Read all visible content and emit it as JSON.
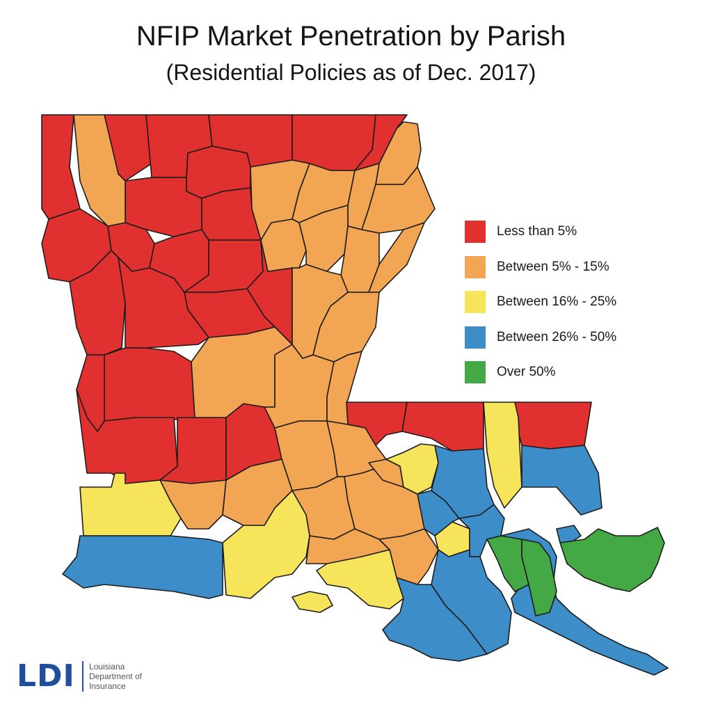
{
  "title": "NFIP Market Penetration by Parish",
  "subtitle": "(Residential Policies as of Dec. 2017)",
  "legend": [
    {
      "label": "Less than 5%",
      "color": "#e0302f"
    },
    {
      "label": "Between 5% - 15%",
      "color": "#f2a654"
    },
    {
      "label": "Between 16% - 25%",
      "color": "#f6e45a"
    },
    {
      "label": "Between 26% - 50%",
      "color": "#3d8dc8"
    },
    {
      "label": "Over 50%",
      "color": "#44a845"
    }
  ],
  "logo": {
    "mark": "LDI",
    "line1": "Louisiana",
    "line2": "Department of",
    "line3": "Insurance"
  },
  "map_regions_by_category": [
    {
      "category": "Less than 5%",
      "count": 24
    },
    {
      "category": "Between 5% - 15%",
      "count": 21
    },
    {
      "category": "Between 16% - 25%",
      "count": 7
    },
    {
      "category": "Between 26% - 50%",
      "count": 9
    },
    {
      "category": "Over 50%",
      "count": 3
    }
  ]
}
